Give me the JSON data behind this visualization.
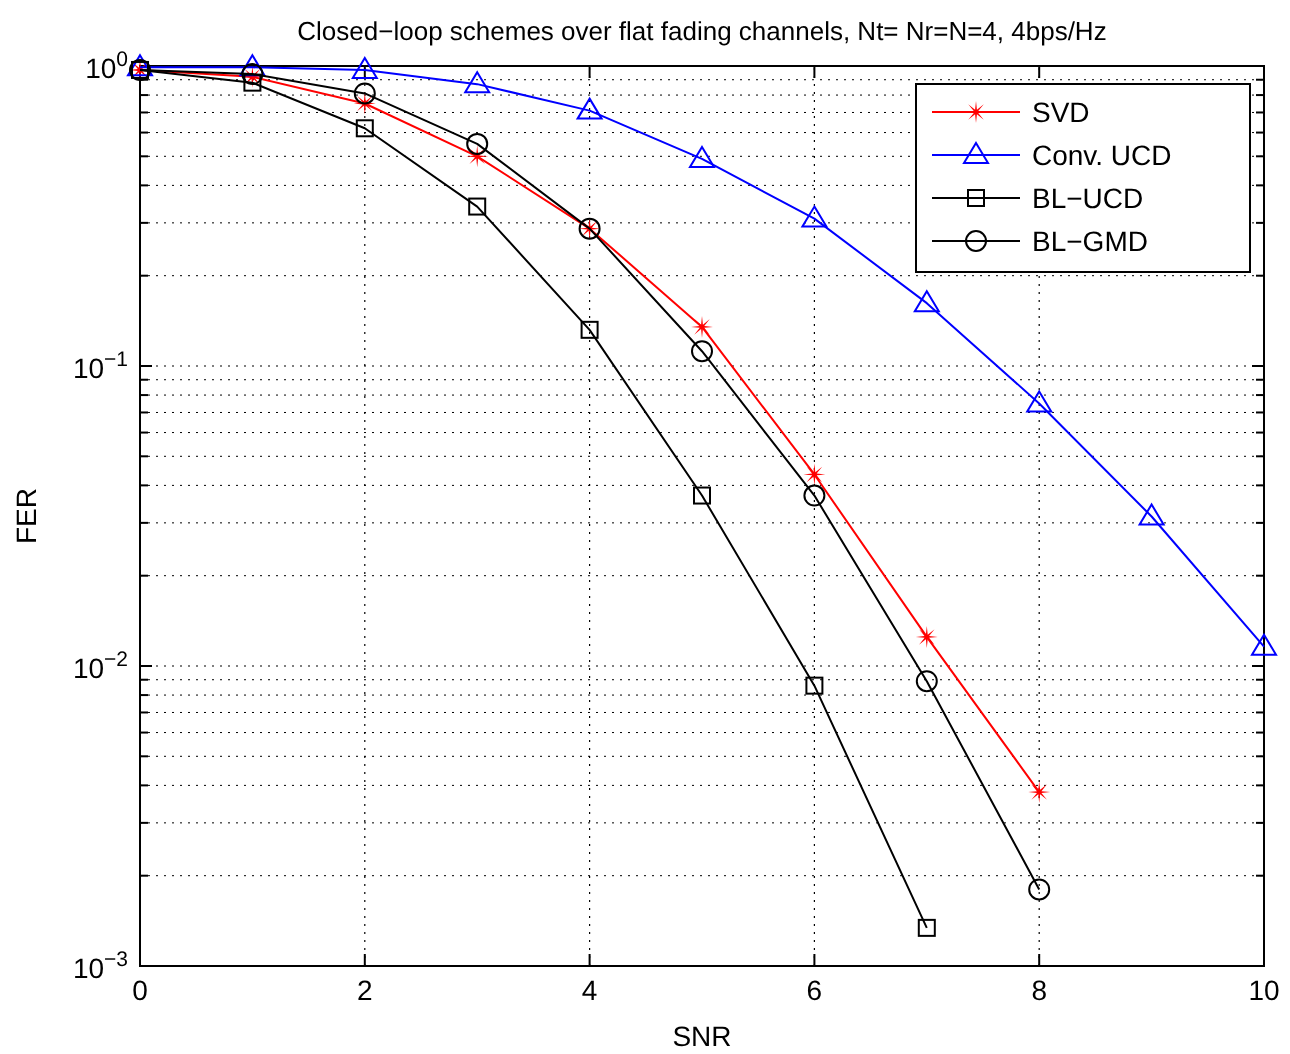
{
  "chart_data": {
    "type": "line",
    "title": "Closed−loop schemes over flat fading channels, Nt= Nr=N=4, 4bps/Hz",
    "xlabel": "SNR",
    "ylabel": "FER",
    "x": [
      0,
      1,
      2,
      3,
      4,
      5,
      6,
      7,
      8,
      9,
      10
    ],
    "series": [
      {
        "name": "SVD",
        "color": "#ff0000",
        "marker": "star",
        "values": [
          0.97,
          0.92,
          0.75,
          0.5,
          0.287,
          0.135,
          0.0435,
          0.0125,
          0.0038,
          null,
          null
        ]
      },
      {
        "name": "Conv. UCD",
        "color": "#0000ff",
        "marker": "triangle",
        "values": [
          0.99,
          0.99,
          0.97,
          0.87,
          0.71,
          0.49,
          0.31,
          0.162,
          0.075,
          0.0315,
          0.0116
        ]
      },
      {
        "name": "BL−UCD",
        "color": "#000000",
        "marker": "square",
        "values": [
          0.97,
          0.88,
          0.62,
          0.34,
          0.132,
          0.037,
          0.0086,
          0.00134,
          null,
          null,
          null
        ]
      },
      {
        "name": "BL−GMD",
        "color": "#000000",
        "marker": "circle",
        "values": [
          0.97,
          0.94,
          0.81,
          0.55,
          0.287,
          0.112,
          0.037,
          0.0089,
          0.0018,
          null,
          null
        ]
      }
    ],
    "xlim": [
      0,
      10
    ],
    "xticks": [
      0,
      2,
      4,
      6,
      8,
      10
    ],
    "ylim": [
      0.001,
      1
    ],
    "yticks": [
      {
        "value": 0.001,
        "label": "10$^{−3}$"
      },
      {
        "value": 0.01,
        "label": "10$^{−2}$"
      },
      {
        "value": 0.1,
        "label": "10$^{−1}$"
      },
      {
        "value": 1,
        "label": "10$^{0}$"
      }
    ],
    "log": "y",
    "grid": true,
    "legend": "top right",
    "line_style": "solid"
  }
}
